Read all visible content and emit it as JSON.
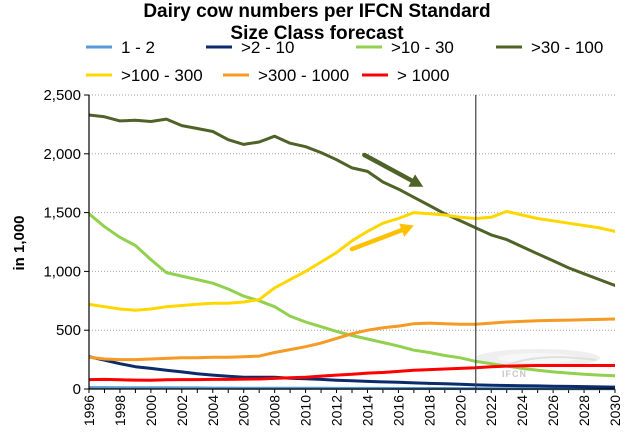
{
  "chart_data": {
    "type": "line",
    "title": "Dairy cow numbers per IFCN Standard",
    "subtitle": "Size Class forecast",
    "ylabel": "in 1,000",
    "xlabel": "",
    "ylim": [
      0,
      2500
    ],
    "yticks": [
      0,
      500,
      1000,
      1500,
      2000,
      2500
    ],
    "ytick_labels": [
      "0",
      "500",
      "1,000",
      "1,500",
      "2,000",
      "2,500"
    ],
    "x": [
      1996,
      1997,
      1998,
      1999,
      2000,
      2001,
      2002,
      2003,
      2004,
      2005,
      2006,
      2007,
      2008,
      2009,
      2010,
      2011,
      2012,
      2013,
      2014,
      2015,
      2016,
      2017,
      2018,
      2019,
      2020,
      2021,
      2022,
      2023,
      2024,
      2025,
      2026,
      2027,
      2028,
      2029,
      2030
    ],
    "xticks": [
      1996,
      1998,
      2000,
      2002,
      2004,
      2006,
      2008,
      2010,
      2012,
      2014,
      2016,
      2018,
      2020,
      2022,
      2024,
      2026,
      2028,
      2030
    ],
    "xtick_labels": [
      "1996",
      "1998",
      "2000",
      "2002",
      "2004",
      "2006",
      "2008",
      "2010",
      "2012",
      "2014",
      "2016",
      "2018",
      "2020",
      "2022",
      "2024",
      "2026",
      "2028",
      "2030"
    ],
    "forecast_divider_x": 2021,
    "grid": "horizontal",
    "legend_position": "top",
    "series": [
      {
        "name": "1 - 2",
        "color": "#5b9bd5",
        "values": [
          12,
          12,
          11,
          11,
          10,
          10,
          9,
          9,
          8,
          8,
          7,
          7,
          7,
          6,
          6,
          6,
          5,
          5,
          5,
          5,
          4,
          4,
          4,
          4,
          3,
          3,
          3,
          3,
          3,
          3,
          2,
          2,
          2,
          2,
          2
        ]
      },
      {
        "name": ">2 - 10",
        "color": "#0c2b6b",
        "values": [
          275,
          245,
          215,
          190,
          175,
          160,
          145,
          130,
          118,
          108,
          100,
          100,
          100,
          92,
          88,
          82,
          75,
          70,
          65,
          60,
          58,
          52,
          48,
          44,
          40,
          35,
          32,
          30,
          28,
          26,
          24,
          22,
          20,
          18,
          16
        ]
      },
      {
        "name": ">10 - 30",
        "color": "#92d050",
        "values": [
          1490,
          1380,
          1290,
          1220,
          1100,
          990,
          960,
          930,
          900,
          850,
          790,
          750,
          700,
          620,
          570,
          530,
          490,
          455,
          425,
          395,
          365,
          330,
          310,
          285,
          265,
          235,
          215,
          195,
          175,
          160,
          145,
          135,
          125,
          118,
          112
        ]
      },
      {
        "name": ">30 - 100",
        "color": "#4f6228",
        "values": [
          2330,
          2315,
          2280,
          2285,
          2275,
          2295,
          2240,
          2215,
          2190,
          2120,
          2080,
          2100,
          2150,
          2090,
          2060,
          2010,
          1950,
          1880,
          1850,
          1760,
          1700,
          1630,
          1560,
          1490,
          1430,
          1370,
          1310,
          1270,
          1210,
          1150,
          1090,
          1030,
          980,
          930,
          880
        ]
      },
      {
        "name": ">100 - 300",
        "color": "#ffd700",
        "values": [
          720,
          700,
          680,
          670,
          680,
          700,
          710,
          720,
          730,
          730,
          740,
          760,
          860,
          930,
          1000,
          1080,
          1160,
          1260,
          1340,
          1410,
          1450,
          1500,
          1490,
          1480,
          1460,
          1450,
          1460,
          1510,
          1480,
          1450,
          1430,
          1410,
          1390,
          1370,
          1340
        ]
      },
      {
        "name": ">300 - 1000",
        "color": "#f59a23",
        "values": [
          270,
          255,
          250,
          250,
          255,
          260,
          265,
          265,
          270,
          270,
          275,
          280,
          310,
          335,
          360,
          390,
          430,
          470,
          500,
          520,
          535,
          555,
          560,
          555,
          550,
          550,
          560,
          570,
          575,
          580,
          583,
          586,
          589,
          592,
          595
        ]
      },
      {
        "name": "> 1000",
        "color": "#ff0000",
        "values": [
          80,
          82,
          78,
          76,
          75,
          78,
          80,
          80,
          82,
          82,
          84,
          85,
          90,
          95,
          100,
          110,
          118,
          125,
          135,
          140,
          150,
          160,
          165,
          170,
          175,
          180,
          190,
          195,
          198,
          200,
          200,
          200,
          200,
          200,
          200
        ]
      }
    ],
    "annotations": [
      {
        "type": "arrow",
        "color": "#4f6228",
        "from": {
          "x": 2013.8,
          "y": 1990
        },
        "to": {
          "x": 2017.6,
          "y": 1720
        }
      },
      {
        "type": "arrow",
        "color": "#ffc000",
        "from": {
          "x": 2013.0,
          "y": 1190
        },
        "to": {
          "x": 2017.0,
          "y": 1390
        }
      }
    ],
    "watermark": "IFCN"
  }
}
